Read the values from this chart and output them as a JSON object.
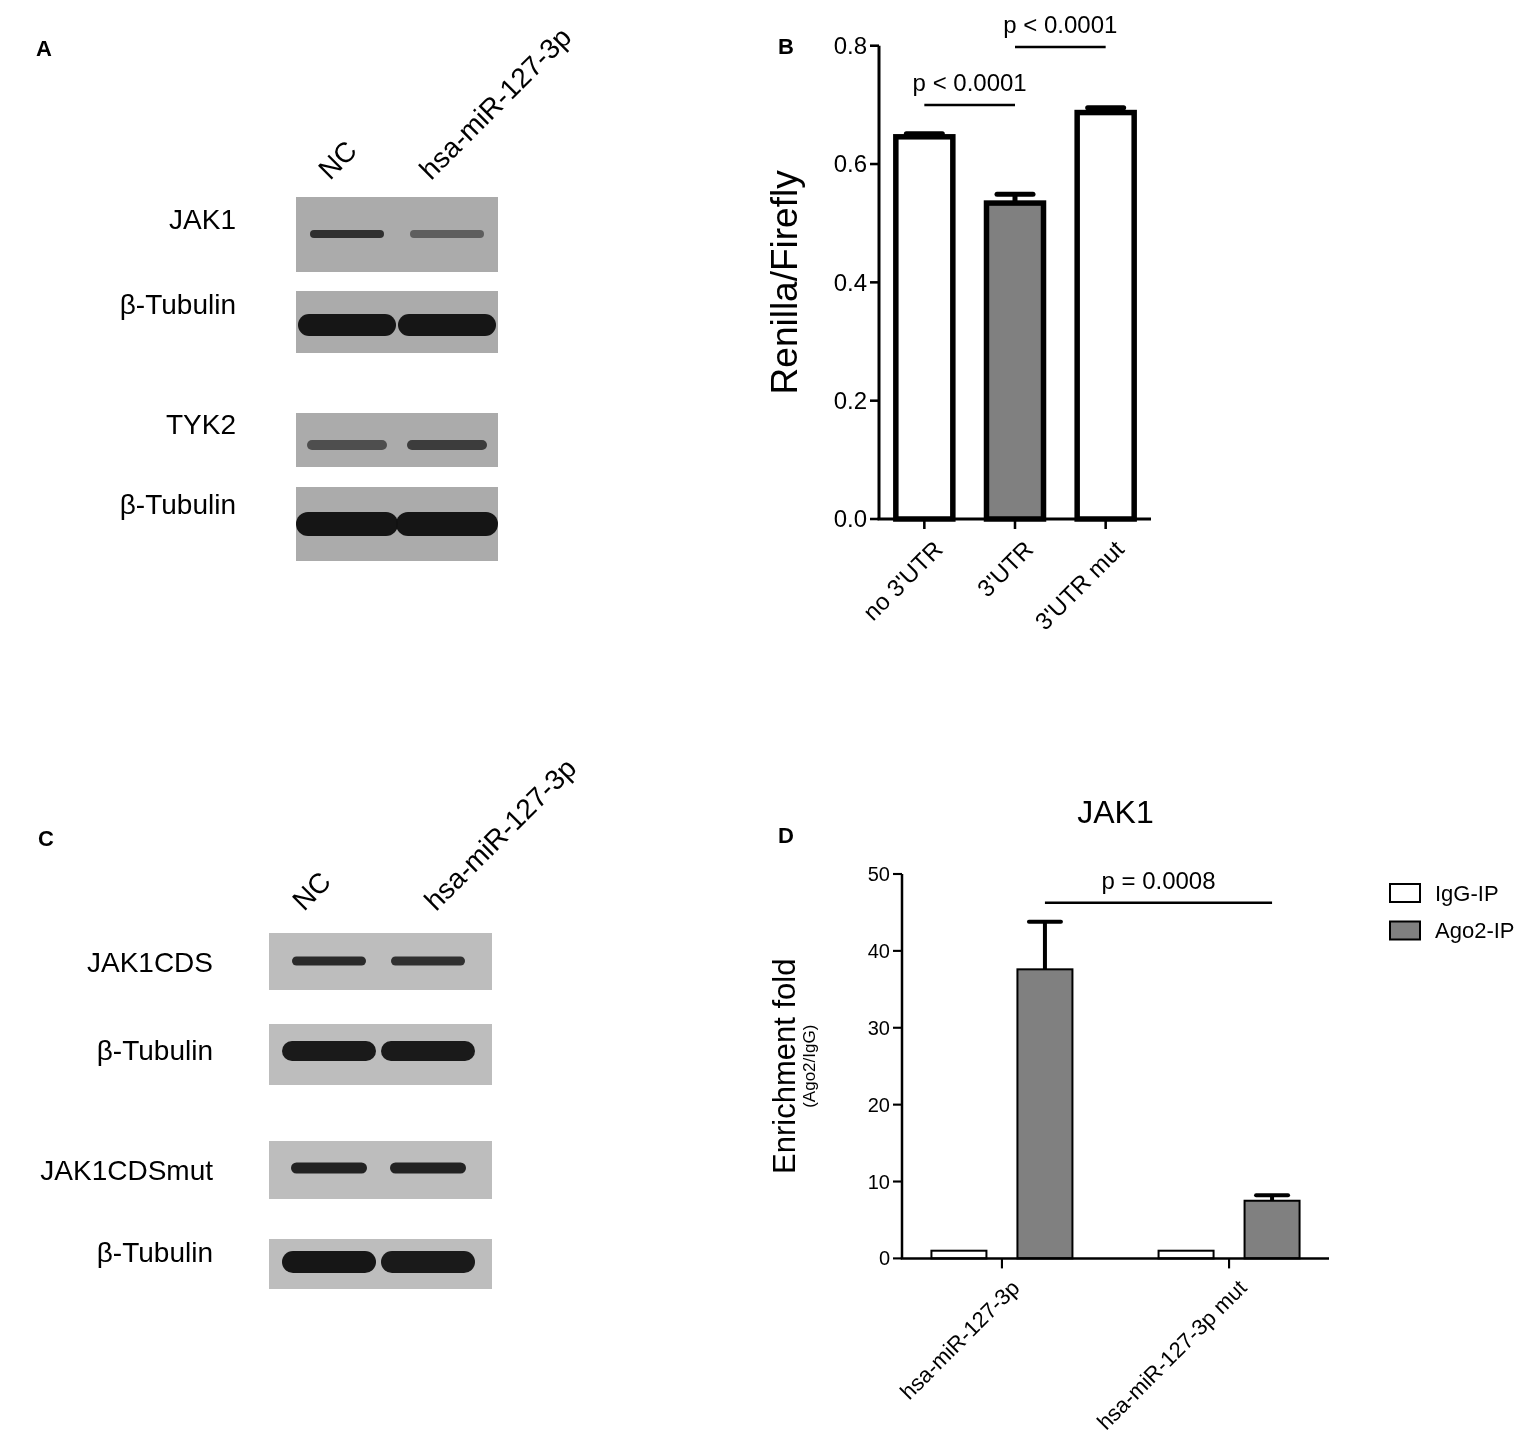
{
  "chart_data": [
    {
      "type": "other",
      "annotations": [
        "A",
        "JAK1",
        "β-Tubulin",
        "TYK2",
        "β-Tubulin"
      ],
      "categories": [
        "NC",
        "hsa-miR-127-3p"
      ]
    },
    {
      "type": "bar",
      "ylabel": "Renilla/Firefly",
      "categories": [
        "no 3'UTR",
        "3'UTR",
        "3'UTR mut"
      ],
      "values": [
        0.646,
        0.534,
        0.687
      ],
      "colors": [
        "#ffffff",
        "#808080",
        "#ffffff"
      ],
      "errors": [
        [
          0.646,
          0.651
        ],
        [
          0.534,
          0.549
        ],
        [
          0.687,
          0.695
        ]
      ],
      "ylim": [
        0,
        0.8
      ],
      "yticks": [
        {
          "value": 0,
          "label": "0.0"
        },
        {
          "value": 0.2,
          "label": "0.2"
        },
        {
          "value": 0.4,
          "label": "0.4"
        },
        {
          "value": 0.6,
          "label": "0.6"
        },
        {
          "value": 0.8,
          "label": "0.8"
        }
      ],
      "annotations": [
        "B",
        "p < 0.0001",
        "p < 0.0001"
      ]
    },
    {
      "type": "other",
      "annotations": [
        "C",
        "JAK1CDS",
        "β-Tubulin",
        "JAK1CDSmut",
        "β-Tubulin"
      ],
      "categories": [
        "NC",
        "hsa-miR-127-3p"
      ]
    },
    {
      "type": "bar",
      "title": "JAK1",
      "ylabel": "Enrichment fold\n(Ago2/IgG)",
      "categories": [
        "hsa-miR-127-3p",
        "hsa-miR-127-3p mut"
      ],
      "series": [
        {
          "name": "IgG-IP",
          "color": "#ffffff",
          "values": [
            1,
            1
          ]
        },
        {
          "name": "Ago2-IP",
          "color": "#808080",
          "values": [
            37.6,
            7.5
          ],
          "errors": [
            [
              37.6,
              43.8
            ],
            [
              7.5,
              8.2
            ]
          ]
        }
      ],
      "ylim": [
        0,
        50
      ],
      "yticks": [
        0,
        10,
        20,
        30,
        40,
        50
      ],
      "legend": "top right",
      "annotations": [
        "D",
        "p = 0.0008"
      ]
    }
  ]
}
